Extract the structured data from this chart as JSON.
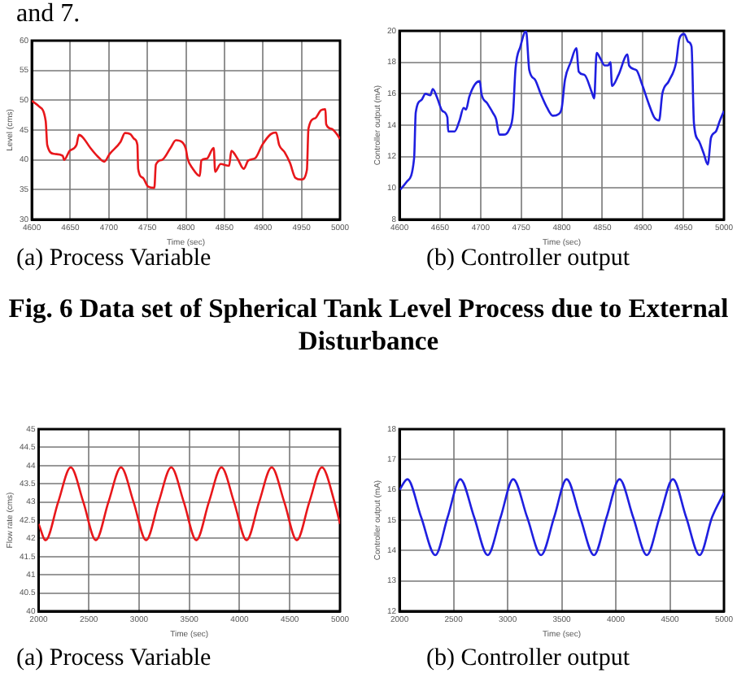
{
  "chart_data": [
    {
      "type": "line",
      "title": "(a) Process Variable",
      "xlabel": "Time (sec)",
      "ylabel": "Level (cms)",
      "annotations": [
        "and 7.",
        "Fig. 6 Data set of Spherical Tank Level Process due to External Disturbance"
      ],
      "xlim": [
        4600,
        5000
      ],
      "xticks": [
        4600,
        4650,
        4700,
        4750,
        4800,
        4850,
        4900,
        4950,
        5000
      ],
      "ylim": [
        30,
        60
      ],
      "yticks": [
        30,
        35,
        40,
        45,
        50,
        55,
        60
      ],
      "grid": true,
      "legend": false,
      "marker": "none",
      "line_style": "solid",
      "x": [
        4600,
        4609,
        4618,
        4620,
        4629,
        4640,
        4642,
        4649,
        4658,
        4661,
        4666,
        4676,
        4686,
        4694,
        4701,
        4715,
        4721,
        4728,
        4733,
        4737,
        4738,
        4744,
        4751,
        4759,
        4761,
        4769,
        4780,
        4787,
        4795,
        4800,
        4802,
        4809,
        4818,
        4820,
        4827,
        4836,
        4838,
        4845,
        4856,
        4859,
        4867,
        4875,
        4881,
        4890,
        4899,
        4910,
        4917,
        4921,
        4928,
        4935,
        4942,
        4950,
        4957,
        4959,
        4968,
        4975,
        4981,
        4982,
        4989,
        4996,
        5000
      ],
      "series": [
        {
          "color": "#e8171b",
          "values": [
            49.9,
            49,
            46.5,
            42.5,
            41,
            40.7,
            40,
            41.5,
            42.5,
            44.2,
            43.8,
            42,
            40.5,
            39.7,
            41,
            43,
            44.5,
            44.3,
            43.5,
            42.5,
            38.5,
            37,
            35.5,
            35.3,
            39.2,
            40,
            42,
            43.3,
            43,
            41.8,
            40.3,
            38.5,
            37.3,
            39.9,
            40.2,
            42,
            38,
            39.3,
            39,
            41.5,
            40.2,
            38.5,
            39.9,
            40.3,
            42.5,
            44.3,
            44.6,
            42.5,
            41.3,
            39.5,
            37,
            36.7,
            38.3,
            45.2,
            47,
            48.3,
            48.5,
            46,
            45.2,
            44.3,
            43.5
          ]
        }
      ]
    },
    {
      "type": "line",
      "title": "(b) Controller output",
      "xlabel": "Time (sec)",
      "ylabel": "Controller output (mA)",
      "xlim": [
        4600,
        5000
      ],
      "xticks": [
        4600,
        4650,
        4700,
        4750,
        4800,
        4850,
        4900,
        4950,
        5000
      ],
      "ylim": [
        8,
        20
      ],
      "yticks": [
        8,
        10,
        12,
        14,
        16,
        18,
        20
      ],
      "grid": true,
      "legend": false,
      "marker": "none",
      "line_style": "solid",
      "x": [
        4601,
        4609,
        4618,
        4620,
        4627,
        4632,
        4638,
        4641,
        4646,
        4653,
        4659,
        4660,
        4668,
        4674,
        4679,
        4682,
        4686,
        4693,
        4699,
        4701,
        4708,
        4715,
        4719,
        4723,
        4728,
        4735,
        4740,
        4743,
        4749,
        4756,
        4760,
        4767,
        4774,
        4782,
        4789,
        4796,
        4800,
        4804,
        4811,
        4818,
        4821,
        4828,
        4837,
        4840,
        4843,
        4848,
        4853,
        4857,
        4860,
        4862,
        4870,
        4881,
        4883,
        4892,
        4899,
        4907,
        4914,
        4920,
        4924,
        4932,
        4941,
        4945,
        4951,
        4956,
        4960,
        4963,
        4969,
        4975,
        4980,
        4984,
        4990,
        4995,
        5000
      ],
      "series": [
        {
          "color": "#1f1fe0",
          "values": [
            9.9,
            10.4,
            11.9,
            14.8,
            15.6,
            16,
            15.9,
            16.3,
            15.8,
            14.9,
            14.5,
            13.6,
            13.6,
            14.3,
            15.1,
            15,
            15.8,
            16.6,
            16.8,
            16,
            15.4,
            14.8,
            14.4,
            13.4,
            13.4,
            13.7,
            14.8,
            17.6,
            19,
            20,
            17.5,
            16.9,
            16,
            15.1,
            14.6,
            14.7,
            15.1,
            16.9,
            18,
            18.9,
            17.4,
            17.2,
            16.1,
            15.7,
            18.6,
            18.2,
            17.8,
            17.8,
            18,
            16.5,
            17.2,
            18.5,
            17.8,
            17.5,
            16.6,
            15.4,
            14.5,
            14.3,
            16,
            16.8,
            18,
            19.5,
            19.8,
            19.3,
            19,
            14.1,
            13,
            12.2,
            11.5,
            13.2,
            13.6,
            14.3,
            14.9
          ]
        }
      ]
    },
    {
      "type": "line",
      "title": "(a) Process Variable",
      "xlabel": "Time (sec)",
      "ylabel": "Flow rate (cms)",
      "xlim": [
        2000,
        5000
      ],
      "xticks": [
        2000,
        2500,
        3000,
        3500,
        4000,
        4500,
        5000
      ],
      "ylim": [
        40,
        45
      ],
      "yticks": [
        40,
        40.5,
        41,
        41.5,
        42,
        42.5,
        43,
        43.5,
        44,
        44.5,
        45
      ],
      "grid": true,
      "legend": false,
      "marker": "none",
      "line_style": "solid",
      "x": [
        2000,
        2070,
        2195,
        2320,
        2445,
        2570,
        2695,
        2820,
        2945,
        3070,
        3195,
        3320,
        3445,
        3570,
        3695,
        3820,
        3945,
        4070,
        4195,
        4320,
        4445,
        4570,
        4695,
        4820,
        4945,
        5000
      ],
      "series": [
        {
          "color": "#e8171b",
          "values": [
            42.4,
            41.95,
            43,
            43.95,
            43,
            41.95,
            43,
            43.95,
            43,
            41.95,
            43,
            43.95,
            43,
            41.95,
            43,
            43.95,
            43,
            41.95,
            43,
            43.95,
            43,
            41.95,
            43,
            43.95,
            43,
            42.4
          ]
        }
      ]
    },
    {
      "type": "line",
      "title": "(b) Controller output",
      "xlabel": "Time (sec)",
      "ylabel": "Controller output (mA)",
      "xlim": [
        2000,
        5000
      ],
      "xticks": [
        2000,
        2500,
        3000,
        3500,
        4000,
        4500,
        5000
      ],
      "ylim": [
        12,
        18
      ],
      "yticks": [
        12,
        13,
        14,
        15,
        16,
        17,
        18
      ],
      "grid": true,
      "legend": false,
      "marker": "none",
      "line_style": "solid",
      "x": [
        2000,
        2073,
        2200,
        2331,
        2445,
        2562,
        2690,
        2815,
        2935,
        3051,
        3180,
        3309,
        3430,
        3545,
        3670,
        3798,
        3915,
        4034,
        4160,
        4287,
        4405,
        4528,
        4650,
        4775,
        4890,
        5000
      ],
      "series": [
        {
          "color": "#1f1fe0",
          "values": [
            16,
            16.35,
            15.1,
            13.85,
            15.1,
            16.35,
            15.1,
            13.85,
            15.1,
            16.35,
            15.1,
            13.85,
            15.1,
            16.35,
            15.1,
            13.85,
            15.1,
            16.35,
            15.1,
            13.85,
            15.1,
            16.35,
            15.1,
            13.85,
            15.1,
            15.9
          ]
        }
      ]
    }
  ]
}
